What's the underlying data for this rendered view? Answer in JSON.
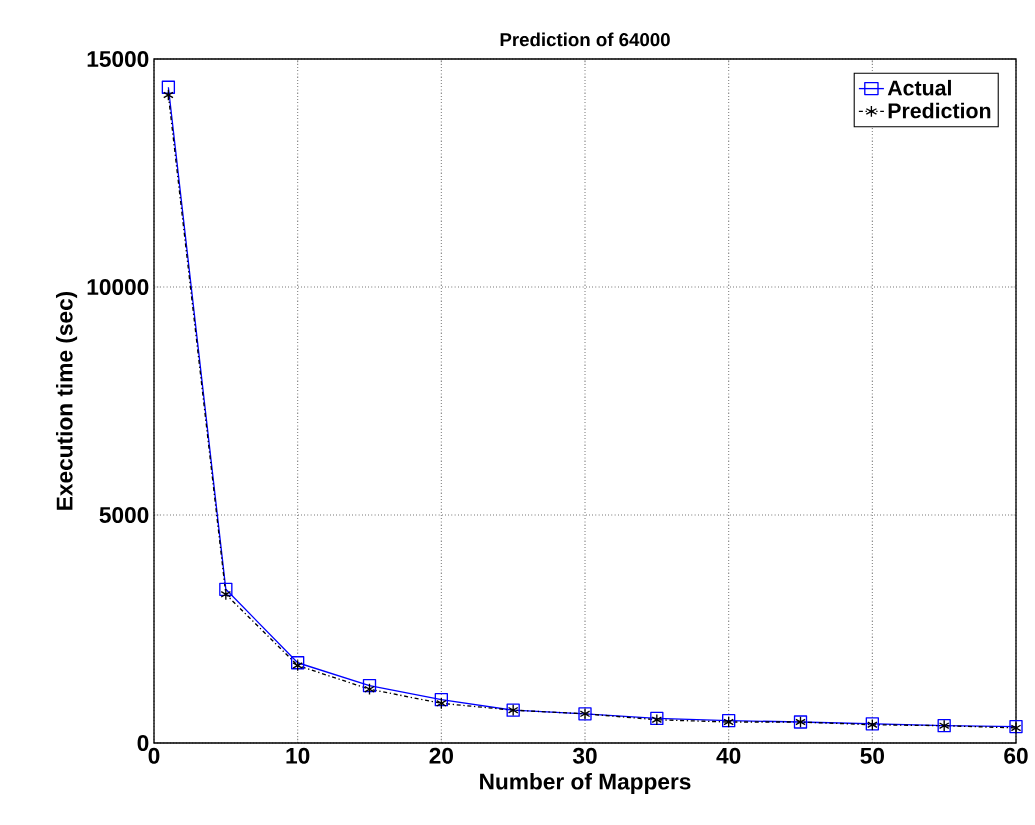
{
  "chart_data": {
    "type": "line",
    "title": "Prediction of 64000",
    "xlabel": "Number of Mappers",
    "ylabel": "Execution time (sec)",
    "x": [
      1,
      5,
      10,
      15,
      20,
      25,
      30,
      35,
      40,
      45,
      50,
      55,
      60
    ],
    "series": [
      {
        "name": "Actual",
        "color": "#0000ff",
        "marker": "square",
        "line_style": "solid",
        "values": [
          14380,
          3370,
          1760,
          1260,
          950,
          720,
          640,
          540,
          490,
          460,
          420,
          380,
          360
        ]
      },
      {
        "name": "Prediction",
        "color": "#000000",
        "marker": "cross",
        "line_style": "dashed",
        "values": [
          14210,
          3260,
          1700,
          1180,
          870,
          720,
          640,
          510,
          460,
          460,
          400,
          380,
          330
        ]
      }
    ],
    "xlim": [
      0,
      60
    ],
    "ylim": [
      0,
      15000
    ],
    "xticks": [
      0,
      10,
      20,
      30,
      40,
      50,
      60
    ],
    "yticks": [
      0,
      5000,
      10000,
      15000
    ],
    "grid": true,
    "legend": "top right"
  }
}
